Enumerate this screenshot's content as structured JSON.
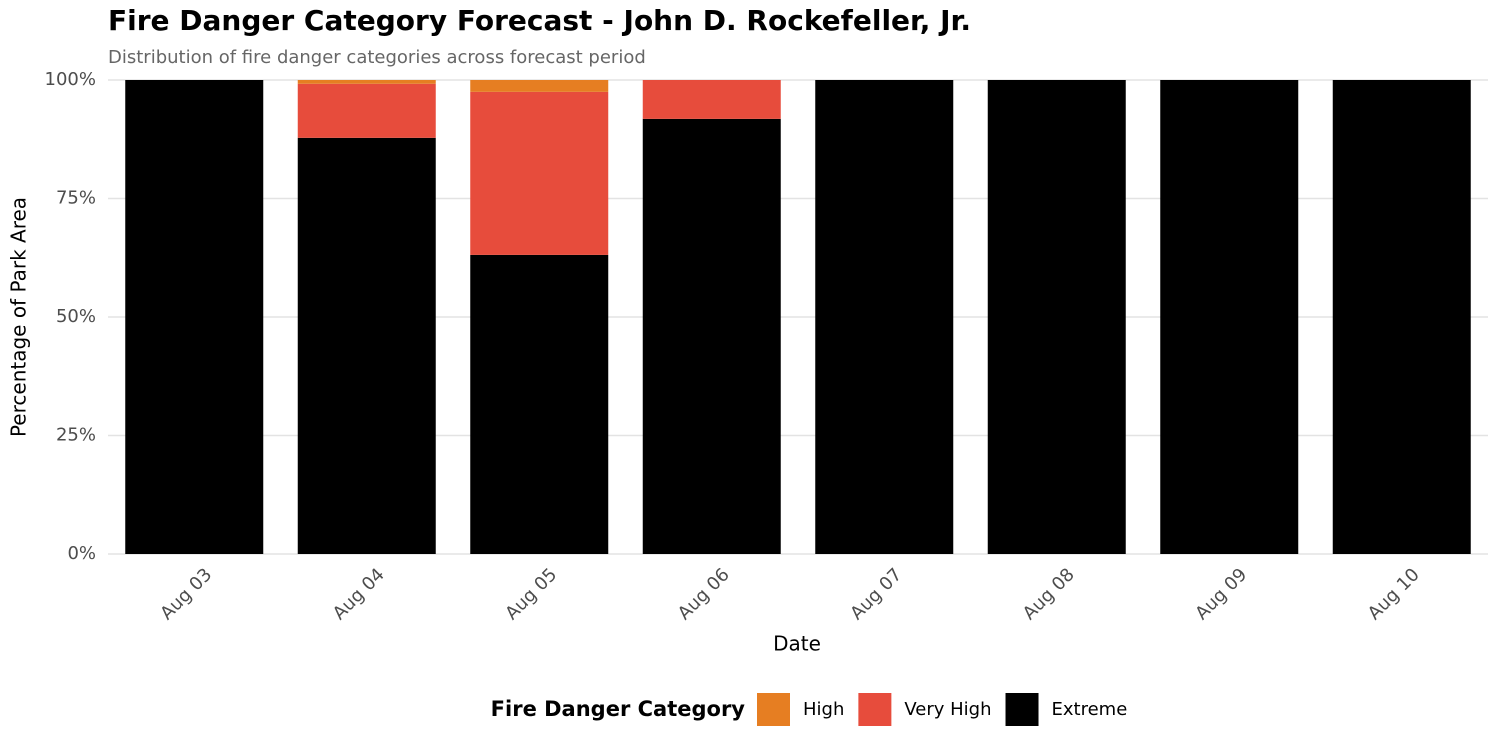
{
  "chart_data": {
    "type": "stacked_bar",
    "title": "Fire Danger Category Forecast - John D. Rockefeller, Jr.",
    "subtitle": "Distribution of fire danger categories across forecast period",
    "x_label": "Date",
    "y_label": "Percentage of Park Area",
    "legend_title": "Fire Danger Category",
    "legend_position": "bottom",
    "categories": [
      "Aug 03",
      "Aug 04",
      "Aug 05",
      "Aug 06",
      "Aug 07",
      "Aug 08",
      "Aug 09",
      "Aug 10"
    ],
    "series": [
      {
        "name": "High",
        "color": "#e67e22",
        "values": [
          0,
          0.8,
          2.5,
          0,
          0,
          0,
          0,
          0
        ]
      },
      {
        "name": "Very High",
        "color": "#e74c3c",
        "values": [
          0,
          11.4,
          34.4,
          8.2,
          0,
          0,
          0,
          0
        ]
      },
      {
        "name": "Extreme",
        "color": "#000000",
        "values": [
          100,
          87.8,
          63.1,
          91.8,
          100,
          100,
          100,
          100
        ]
      }
    ],
    "ylim": [
      0,
      100
    ],
    "yticks": [
      {
        "value": 0,
        "label": "0%"
      },
      {
        "value": 25,
        "label": "25%"
      },
      {
        "value": 50,
        "label": "50%"
      },
      {
        "value": 75,
        "label": "75%"
      },
      {
        "value": 100,
        "label": "100%"
      }
    ],
    "grid": true
  }
}
